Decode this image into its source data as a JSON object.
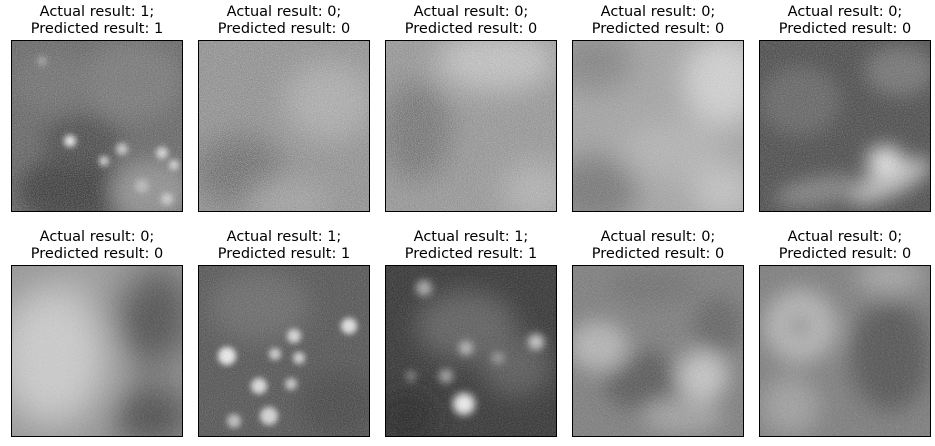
{
  "figure": {
    "panels": [
      {
        "actual_label": "Actual result: 1;",
        "predicted_label": "Predicted result: 1",
        "actual": 1,
        "predicted": 1
      },
      {
        "actual_label": "Actual result: 0;",
        "predicted_label": "Predicted result: 0",
        "actual": 0,
        "predicted": 0
      },
      {
        "actual_label": "Actual result: 0;",
        "predicted_label": "Predicted result: 0",
        "actual": 0,
        "predicted": 0
      },
      {
        "actual_label": "Actual result: 0;",
        "predicted_label": "Predicted result: 0",
        "actual": 0,
        "predicted": 0
      },
      {
        "actual_label": "Actual result: 0;",
        "predicted_label": "Predicted result: 0",
        "actual": 0,
        "predicted": 0
      },
      {
        "actual_label": "Actual result: 0;",
        "predicted_label": "Predicted result: 0",
        "actual": 0,
        "predicted": 0
      },
      {
        "actual_label": "Actual result: 1;",
        "predicted_label": "Predicted result: 1",
        "actual": 1,
        "predicted": 1
      },
      {
        "actual_label": "Actual result: 1;",
        "predicted_label": "Predicted result: 1",
        "actual": 1,
        "predicted": 1
      },
      {
        "actual_label": "Actual result: 0;",
        "predicted_label": "Predicted result: 0",
        "actual": 0,
        "predicted": 0
      },
      {
        "actual_label": "Actual result: 0;",
        "predicted_label": "Predicted result: 0",
        "actual": 0,
        "predicted": 0
      }
    ]
  }
}
